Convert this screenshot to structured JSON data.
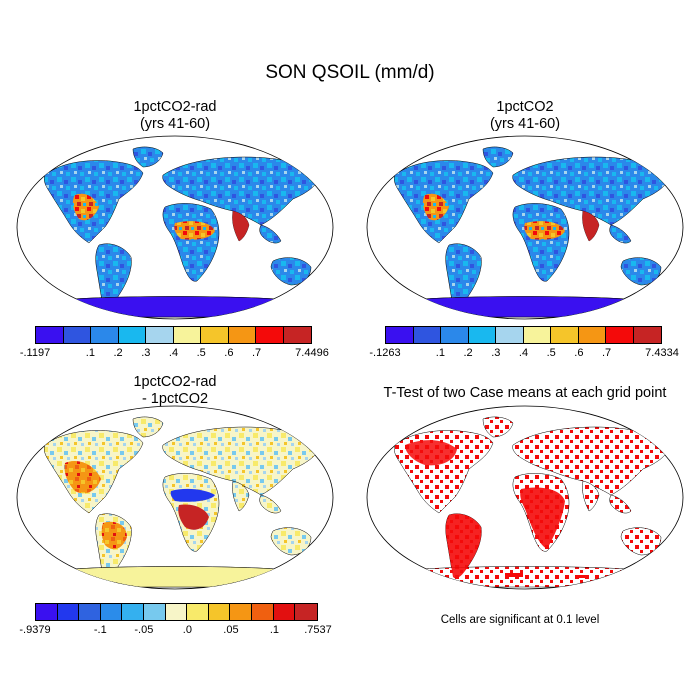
{
  "figure": {
    "title": "SON QSOIL (mm/d)"
  },
  "panels": [
    {
      "title": "1pctCO2-rad\n(yrs 41-60)",
      "colorbar": {
        "colors": [
          "#3a10f0",
          "#2f55e0",
          "#2b88ea",
          "#19b8ef",
          "#a6d5ee",
          "#f7f39b",
          "#f5c52a",
          "#f59614",
          "#f40a0a",
          "#c62424"
        ],
        "labels": [
          "-.1197",
          ".1",
          ".2",
          ".3",
          ".4",
          ".5",
          ".6",
          ".7",
          "7.4496"
        ]
      }
    },
    {
      "title": "1pctCO2\n(yrs 41-60)",
      "colorbar": {
        "colors": [
          "#3a10f0",
          "#2f55e0",
          "#2b88ea",
          "#19b8ef",
          "#a6d5ee",
          "#f7f39b",
          "#f5c52a",
          "#f59614",
          "#f40a0a",
          "#c62424"
        ],
        "labels": [
          "-.1263",
          ".1",
          ".2",
          ".3",
          ".4",
          ".5",
          ".6",
          ".7",
          "7.4334"
        ]
      }
    },
    {
      "title": "1pctCO2-rad\n- 1pctCO2",
      "colorbar": {
        "colors": [
          "#3a10f0",
          "#2238ee",
          "#2f63e0",
          "#2b8cea",
          "#34b0ef",
          "#77c9ee",
          "#f7f5c8",
          "#f8ea6a",
          "#f5c52a",
          "#f59614",
          "#f06010",
          "#e21010",
          "#c62424"
        ],
        "labels": [
          "-.9379",
          "-.1",
          "-.05",
          ".0",
          ".05",
          ".1",
          ".7537"
        ]
      }
    },
    {
      "title": "T-Test of two Case means at each grid point",
      "note": "Cells are significant at 0.1 level"
    }
  ]
}
